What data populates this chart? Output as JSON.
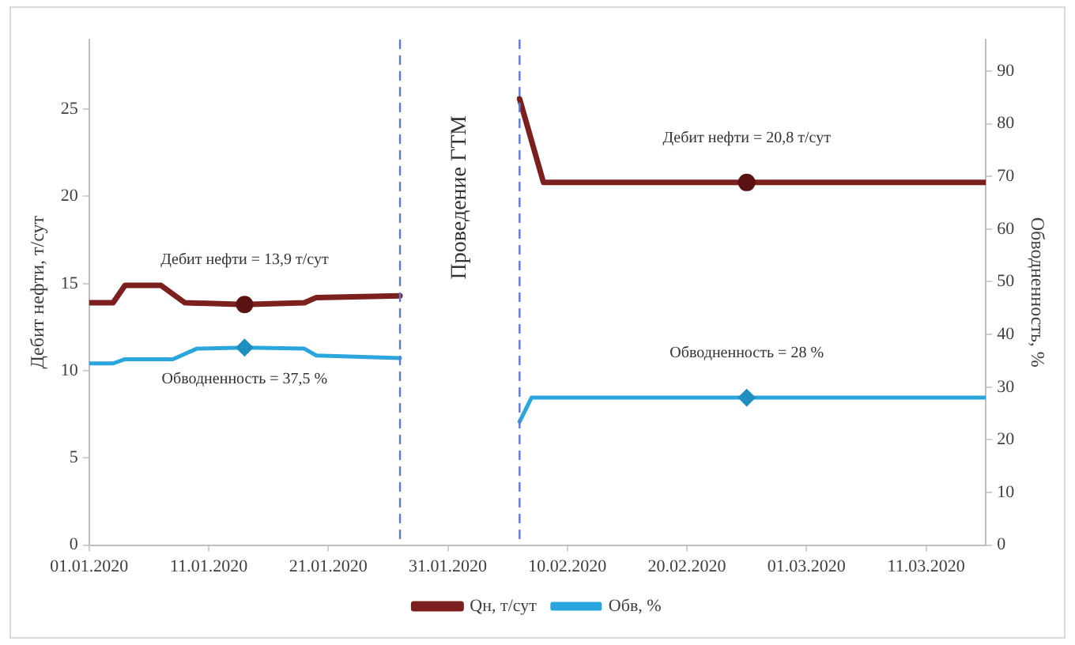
{
  "chart_data": {
    "type": "line",
    "ylabel": "Дебит нефти, т/сут",
    "y2label": "Обводненность, %",
    "xlim": [
      "2020-01-01",
      "2020-03-16"
    ],
    "xticks": [
      {
        "value": "2020-01-01",
        "label": "01.01.2020"
      },
      {
        "value": "2020-01-11",
        "label": "11.01.2020"
      },
      {
        "value": "2020-01-21",
        "label": "21.01.2020"
      },
      {
        "value": "2020-01-31",
        "label": "31.01.2020"
      },
      {
        "value": "2020-02-10",
        "label": "10.02.2020"
      },
      {
        "value": "2020-02-20",
        "label": "20.02.2020"
      },
      {
        "value": "2020-03-01",
        "label": "01.03.2020"
      },
      {
        "value": "2020-03-11",
        "label": "11.03.2020"
      }
    ],
    "ylim": [
      0,
      29
    ],
    "yticks": [
      0,
      5,
      10,
      15,
      20,
      25
    ],
    "y2lim": [
      0,
      96
    ],
    "y2ticks": [
      0,
      10,
      20,
      30,
      40,
      50,
      60,
      70,
      80,
      90
    ],
    "grid": false,
    "legend": "bottom",
    "marker": "none",
    "series": [
      {
        "name": "Qн, т/сут",
        "color": "#7b1f1f",
        "x": [
          "2020-01-01",
          "2020-01-03",
          "2020-01-04",
          "2020-01-07",
          "2020-01-09",
          "2020-01-14",
          "2020-01-19",
          "2020-01-20",
          "2020-01-27",
          "2020-02-01",
          "2020-02-06",
          "2020-02-08",
          "2020-03-16"
        ],
        "values": [
          13.9,
          13.9,
          14.9,
          14.9,
          13.9,
          13.8,
          13.9,
          14.2,
          14.3,
          null,
          25.6,
          20.8,
          20.8
        ]
      },
      {
        "name": "Обв, %",
        "color": "#2ba6dc",
        "axis": "y2",
        "x": [
          "2020-01-01",
          "2020-01-03",
          "2020-01-04",
          "2020-01-08",
          "2020-01-10",
          "2020-01-14",
          "2020-01-19",
          "2020-01-20",
          "2020-01-27",
          "2020-02-01",
          "2020-02-06",
          "2020-02-07",
          "2020-03-16"
        ],
        "values": [
          34.5,
          34.5,
          35.3,
          35.3,
          37.3,
          37.5,
          37.3,
          36,
          35.5,
          null,
          23.4,
          28,
          28
        ]
      },
      {
        "type": "scatter",
        "color": "#5a1212",
        "marker": "circle",
        "x": [
          "2020-01-14",
          "2020-02-25"
        ],
        "values": [
          13.8,
          20.8
        ]
      },
      {
        "type": "scatter",
        "color": "#1f8fc0",
        "marker": "diamond",
        "axis": "y2",
        "x": [
          "2020-01-14",
          "2020-02-25"
        ],
        "values": [
          37.5,
          28
        ]
      }
    ],
    "ref_lines": [
      {
        "axis": "x",
        "value": "2020-01-27",
        "color": "#5b7bd5",
        "line_style": "dashed"
      },
      {
        "axis": "x",
        "value": "2020-02-06",
        "color": "#5b7bd5",
        "line_style": "dashed"
      }
    ],
    "annotations": [
      "Проведение ГТМ",
      {
        "text": "Дебит нефти = 13,9 т/сут",
        "x": "2020-01-14",
        "y": 13.8
      },
      "Обводненность = 37,5 %",
      {
        "text": "Дебит нефти = 20,8 т/сут",
        "x": "2020-02-25",
        "y": 20.8
      },
      "Обводненность = 28 %"
    ]
  }
}
